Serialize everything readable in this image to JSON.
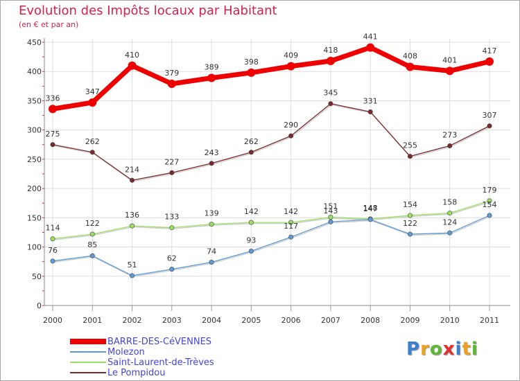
{
  "title": "Evolution des Impôts locaux par Habitant",
  "subtitle": "(en € et par an)",
  "logo_text": "Proxiti",
  "logo_letters": [
    {
      "ch": "P",
      "color": "#3a7fd0"
    },
    {
      "ch": "r",
      "color": "#f0a020"
    },
    {
      "ch": "o",
      "color": "#5bb830"
    },
    {
      "ch": "x",
      "color": "#e03030"
    },
    {
      "ch": "i",
      "color": "#3a7fd0"
    },
    {
      "ch": "t",
      "color": "#f0a020"
    },
    {
      "ch": "i",
      "color": "#5bb830"
    }
  ],
  "chart_data": {
    "type": "line",
    "title": "Evolution des Impôts locaux par Habitant",
    "subtitle": "(en € et par an)",
    "xlabel": "",
    "ylabel": "",
    "x": [
      "2000",
      "2001",
      "2002",
      "2003",
      "2004",
      "2005",
      "2006",
      "2007",
      "2008",
      "2009",
      "2010",
      "2011"
    ],
    "ylim": [
      0,
      450
    ],
    "yticks": [
      0,
      50,
      100,
      150,
      200,
      250,
      300,
      350,
      400,
      450
    ],
    "grid": true,
    "legend_position": "bottom-left",
    "series": [
      {
        "name": "BARRE-DES-CéVENNES",
        "color": "#ee0000",
        "style": "thick",
        "values": [
          336,
          347,
          410,
          379,
          389,
          398,
          409,
          418,
          441,
          408,
          401,
          417
        ]
      },
      {
        "name": "Molezon",
        "color": "#5c9bd5",
        "style": "thin",
        "values": [
          76,
          85,
          51,
          62,
          74,
          93,
          117,
          143,
          147,
          122,
          124,
          154
        ]
      },
      {
        "name": "Saint-Laurent-de-Trèves",
        "color": "#99e060",
        "style": "thin",
        "values": [
          114,
          122,
          136,
          133,
          139,
          142,
          142,
          151,
          148,
          154,
          158,
          179
        ]
      },
      {
        "name": "Le Pompidou",
        "color": "#7a2a2a",
        "style": "thin",
        "values": [
          275,
          262,
          214,
          227,
          243,
          262,
          290,
          345,
          331,
          255,
          273,
          307
        ]
      }
    ]
  }
}
